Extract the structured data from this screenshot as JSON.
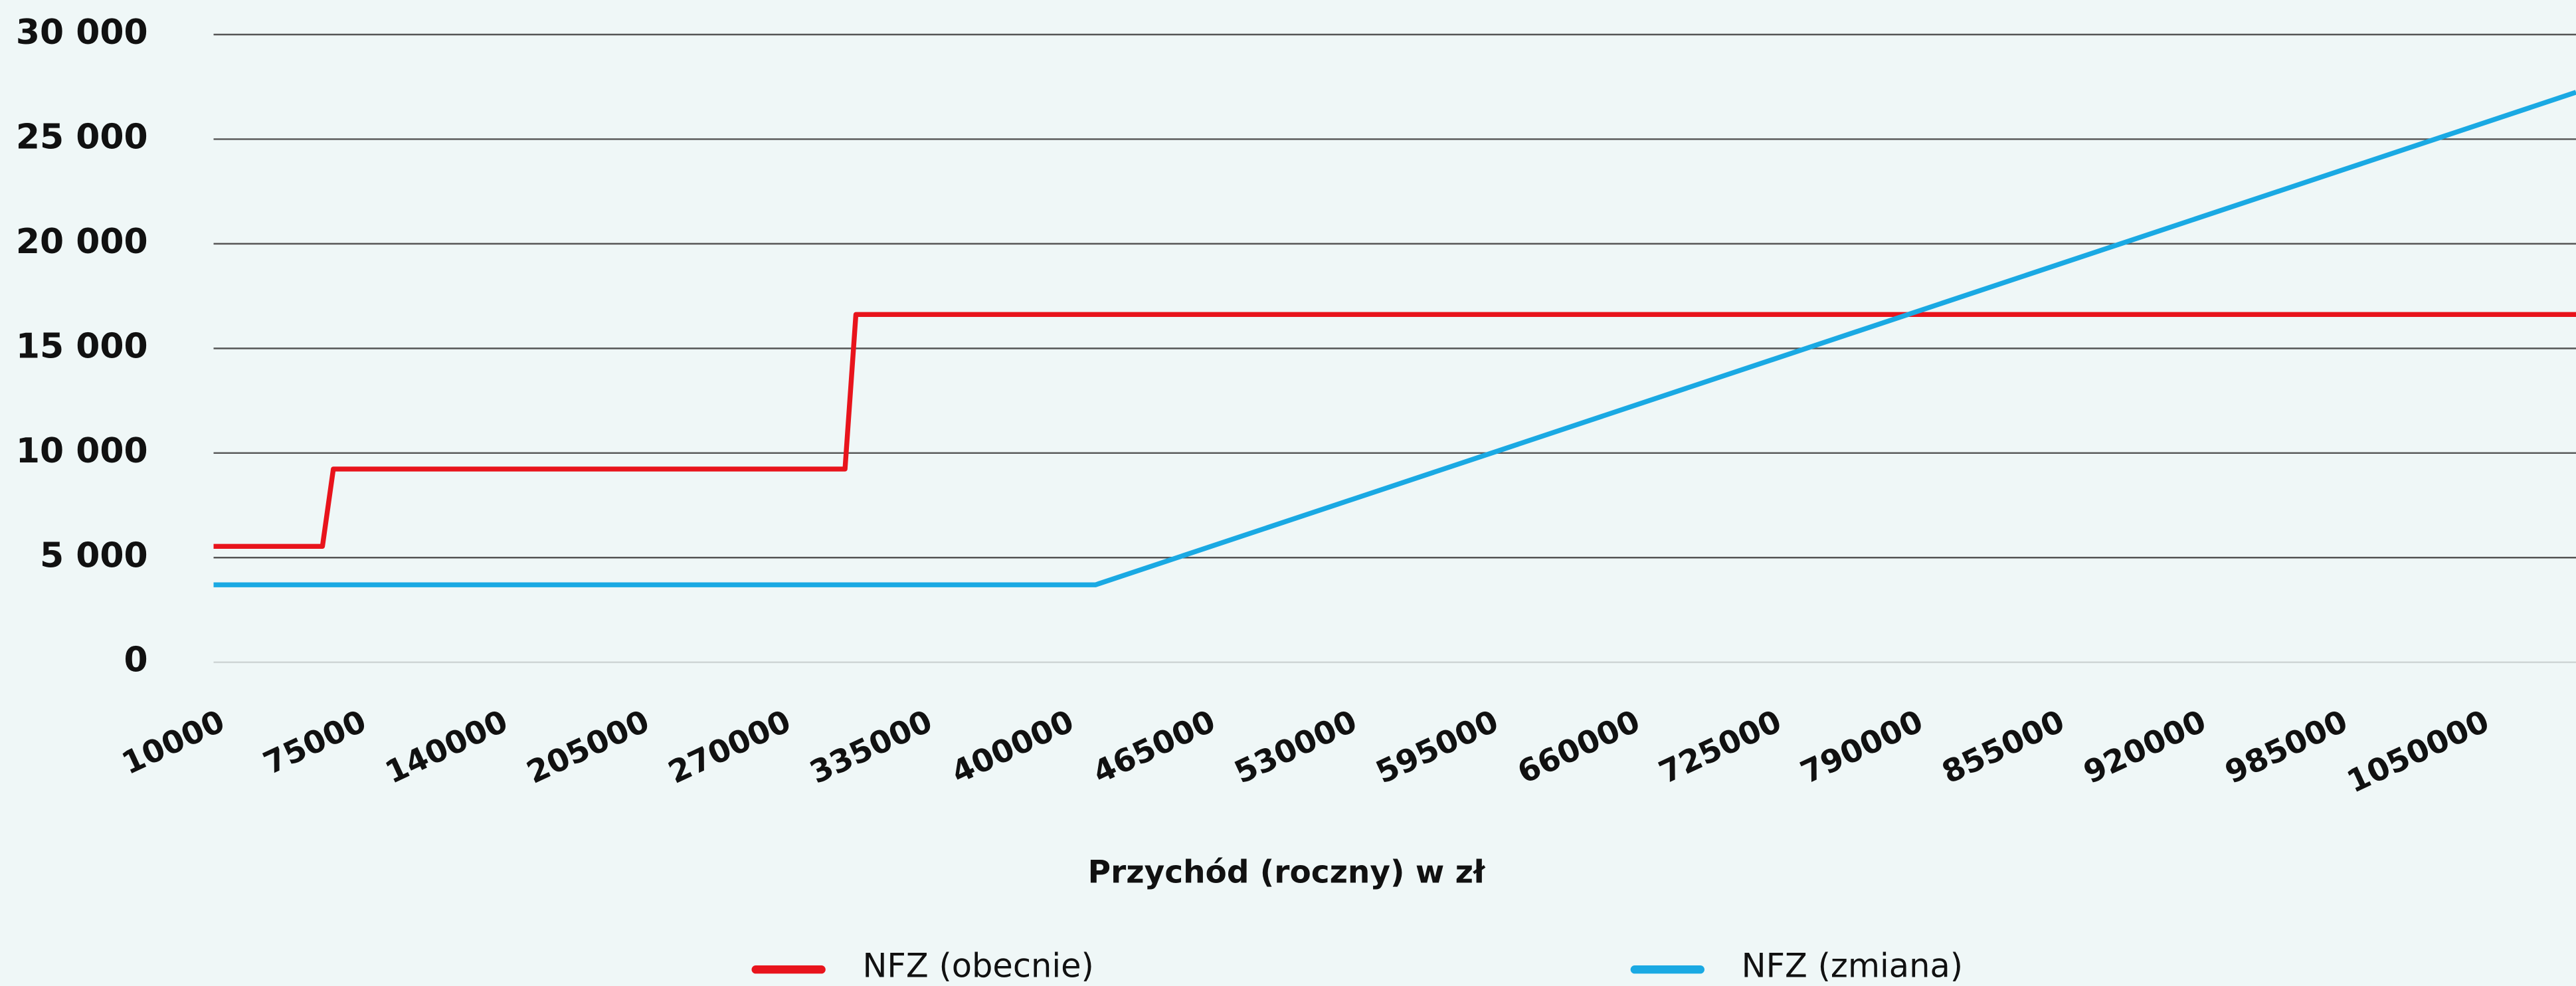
{
  "chart_data": {
    "type": "line",
    "xlabel": "Przychód (roczny) w zł",
    "x": [
      10000,
      60000,
      65000,
      300000,
      305000,
      415000,
      1095000
    ],
    "series": [
      {
        "name": "NFZ (obecnie)",
        "color": "#e8141c",
        "values": [
          5540,
          5540,
          9233,
          9233,
          16620,
          16620,
          16620
        ]
      },
      {
        "name": "NFZ (zmiana)",
        "color": "#1aa9e3",
        "values": [
          3700,
          3700,
          3700,
          3700,
          3700,
          3700,
          27240
        ]
      }
    ],
    "xlim": [
      10000,
      1095000
    ],
    "xticks": [
      10000,
      75000,
      140000,
      205000,
      270000,
      335000,
      400000,
      465000,
      530000,
      595000,
      660000,
      725000,
      790000,
      855000,
      920000,
      985000,
      1050000
    ],
    "ylim": [
      0,
      30000
    ],
    "yticks": [
      0,
      {
        "value": 5000,
        "label": "5 000"
      },
      {
        "value": 10000,
        "label": "10 000"
      },
      {
        "value": 15000,
        "label": "15 000"
      },
      {
        "value": 20000,
        "label": "20 000"
      },
      {
        "value": 25000,
        "label": "25 000"
      },
      {
        "value": 30000,
        "label": "30 000"
      }
    ],
    "grid": true,
    "legend": "bottom"
  }
}
